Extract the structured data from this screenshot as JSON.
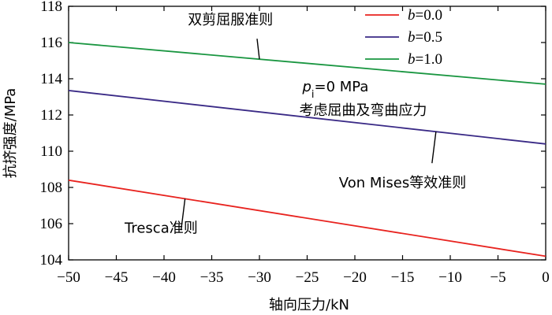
{
  "chart_data": {
    "type": "line",
    "title": "",
    "xlabel": "轴向压力/kN",
    "ylabel": "抗挤强度/MPa",
    "xlim": [
      -50,
      0
    ],
    "ylim": [
      104,
      118
    ],
    "xticks": [
      -50,
      -45,
      -40,
      -35,
      -30,
      -25,
      -20,
      -15,
      -10,
      -5,
      0
    ],
    "yticks": [
      104,
      106,
      108,
      110,
      112,
      114,
      116,
      118
    ],
    "grid": false,
    "legend_position": "top-right",
    "series": [
      {
        "name": "b=0.0",
        "b_symbol": "b",
        "b_value": "=0.0",
        "color": "#e8231f",
        "x": [
          -50,
          0
        ],
        "values": [
          108.4,
          104.2
        ]
      },
      {
        "name": "b=0.5",
        "b_symbol": "b",
        "b_value": "=0.5",
        "color": "#3a2a86",
        "x": [
          -50,
          0
        ],
        "values": [
          113.35,
          110.4
        ]
      },
      {
        "name": "b=1.0",
        "b_symbol": "b",
        "b_value": "=1.0",
        "color": "#1a9641",
        "x": [
          -50,
          0
        ],
        "values": [
          116.0,
          113.7
        ]
      }
    ],
    "annotations": [
      {
        "text": "双剪屈服准则",
        "series": 2,
        "target_x": -30,
        "text_x": -37.5,
        "text_y": 117.0,
        "align": "start"
      },
      {
        "text": "Von Mises等效准则",
        "series": 1,
        "target_x": -11.5,
        "text_x": -15,
        "text_y": 108.0,
        "align": "middle"
      },
      {
        "text": "Tresca准则",
        "series": 0,
        "target_x": -37.8,
        "text_x": -40.3,
        "text_y": 105.5,
        "align": "middle"
      }
    ],
    "condition_note": {
      "symbol": "p",
      "subscript": "i",
      "value": "=0 MPa",
      "line2": "考虑屈曲及弯曲应力",
      "x": -25.5,
      "y1": 113.3,
      "y2": 112.0
    }
  }
}
